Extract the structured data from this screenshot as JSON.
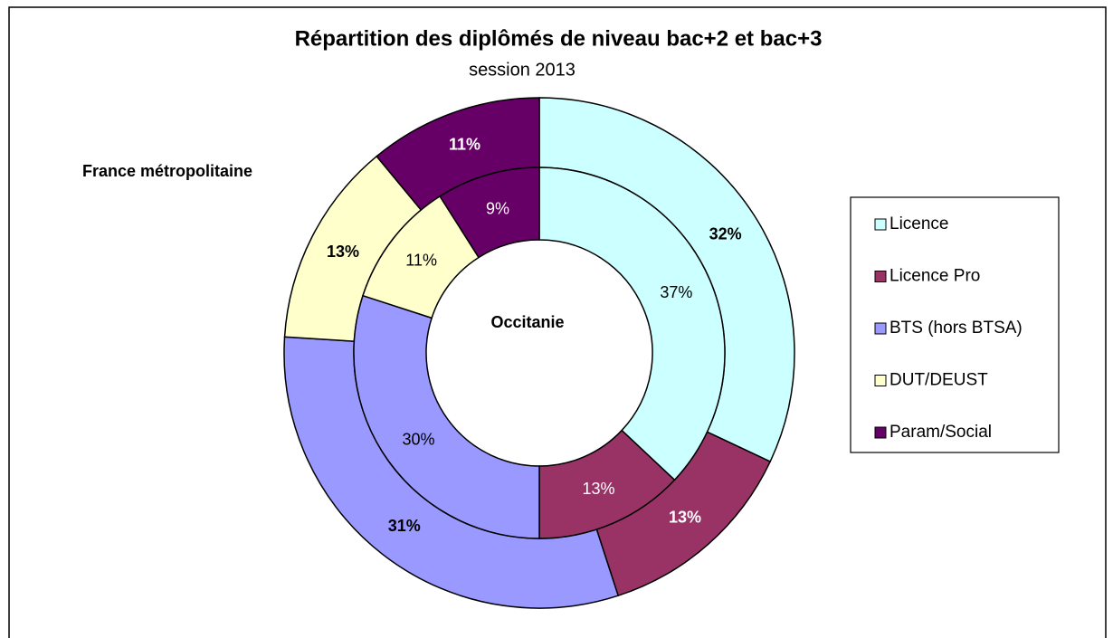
{
  "chart_data": {
    "type": "pie",
    "title": "Répartition des diplômés de niveau bac+2 et bac+3",
    "subtitle": "session 2013",
    "categories": [
      "Licence",
      "Licence Pro",
      "BTS (hors BTSA)",
      "DUT/DEUST",
      "Param/Social"
    ],
    "colors": [
      "#ccffff",
      "#993366",
      "#9999ff",
      "#ffffcc",
      "#660066"
    ],
    "series": [
      {
        "name": "France métropolitaine",
        "values": [
          32,
          13,
          31,
          13,
          11
        ],
        "value_labels": [
          "32%",
          "13%",
          "31%",
          "13%",
          "11%"
        ]
      },
      {
        "name": "Occitanie",
        "values": [
          37,
          13,
          30,
          11,
          9
        ],
        "value_labels": [
          "37%",
          "13%",
          "30%",
          "11%",
          "9%"
        ]
      }
    ]
  }
}
